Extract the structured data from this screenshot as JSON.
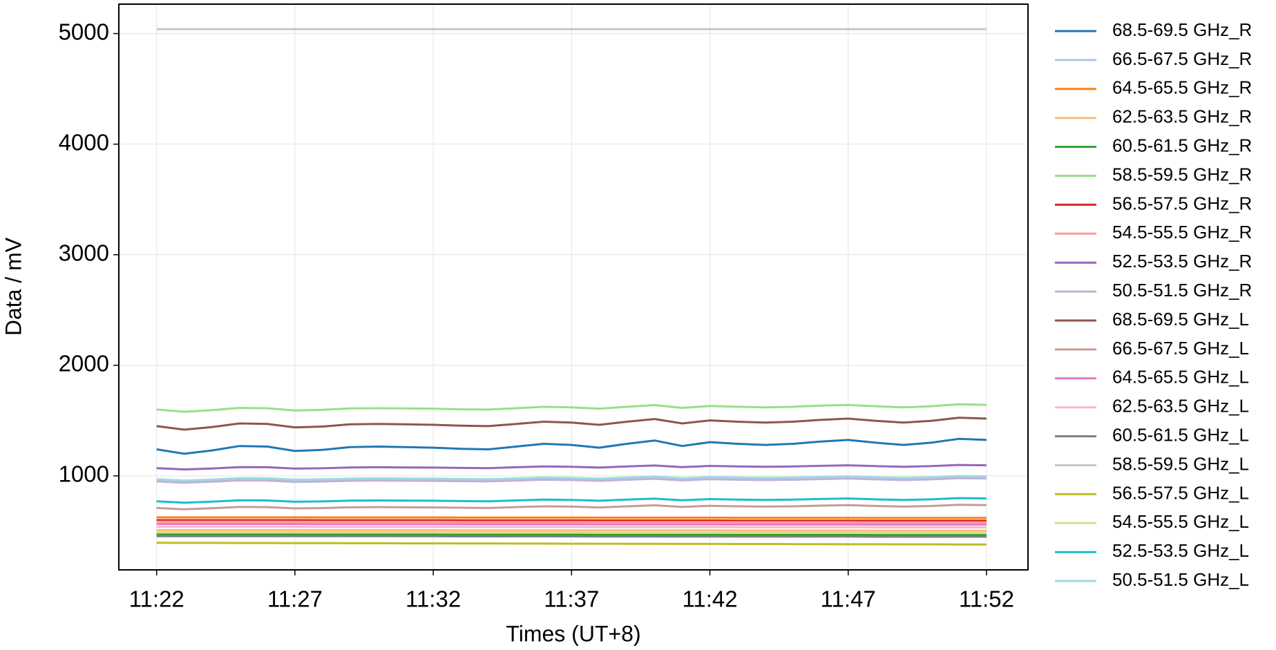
{
  "chart_data": {
    "type": "line",
    "xlabel": "Times (UT+8)",
    "ylabel": "Data / mV",
    "x": [
      "11:22",
      "11:23",
      "11:24",
      "11:25",
      "11:26",
      "11:27",
      "11:28",
      "11:29",
      "11:30",
      "11:31",
      "11:32",
      "11:33",
      "11:34",
      "11:35",
      "11:36",
      "11:37",
      "11:38",
      "11:39",
      "11:40",
      "11:41",
      "11:42",
      "11:43",
      "11:44",
      "11:45",
      "11:46",
      "11:47",
      "11:48",
      "11:49",
      "11:50",
      "11:51",
      "11:52"
    ],
    "xlim": [
      "11:20:38",
      "11:53:30"
    ],
    "xticks": [
      "11:22",
      "11:27",
      "11:32",
      "11:37",
      "11:42",
      "11:47",
      "11:52"
    ],
    "ylim": [
      150,
      5266
    ],
    "yticks": [
      1000,
      2000,
      3000,
      4000,
      5000
    ],
    "grid": true,
    "legend": "outside right",
    "series": [
      {
        "name": "68.5-69.5 GHz_R",
        "color": "#1f77b4",
        "values": [
          1240,
          1200,
          1230,
          1270,
          1265,
          1225,
          1235,
          1260,
          1265,
          1260,
          1255,
          1245,
          1240,
          1265,
          1290,
          1280,
          1255,
          1290,
          1320,
          1270,
          1305,
          1290,
          1280,
          1290,
          1310,
          1325,
          1300,
          1280,
          1300,
          1335,
          1325
        ]
      },
      {
        "name": "66.5-67.5 GHz_R",
        "color": "#aec7e8",
        "values": [
          960,
          948,
          957,
          969,
          968,
          956,
          959,
          966,
          968,
          966,
          965,
          962,
          960,
          968,
          975,
          972,
          965,
          975,
          984,
          969,
          980,
          975,
          972,
          975,
          981,
          986,
          978,
          972,
          978,
          989,
          986
        ]
      },
      {
        "name": "64.5-65.5 GHz_R",
        "color": "#ff7f0e",
        "values": [
          625,
          625,
          625,
          625,
          625,
          625,
          624,
          624,
          624,
          624,
          624,
          623,
          623,
          623,
          623,
          623,
          622,
          622,
          622,
          622,
          622,
          621,
          621,
          621,
          621,
          621,
          620,
          620,
          620,
          620,
          620
        ]
      },
      {
        "name": "62.5-63.5 GHz_R",
        "color": "#ffbb78",
        "values": [
          510,
          510,
          510,
          510,
          510,
          510,
          509,
          509,
          509,
          509,
          509,
          508,
          508,
          508,
          508,
          508,
          507,
          507,
          507,
          507,
          507,
          506,
          506,
          506,
          506,
          506,
          505,
          505,
          505,
          505,
          505
        ]
      },
      {
        "name": "60.5-61.5 GHz_R",
        "color": "#2ca02c",
        "values": [
          470,
          470,
          470,
          470,
          470,
          470,
          469,
          469,
          469,
          469,
          469,
          468,
          468,
          468,
          468,
          468,
          467,
          467,
          467,
          467,
          467,
          466,
          466,
          466,
          466,
          466,
          465,
          465,
          465,
          465,
          465
        ]
      },
      {
        "name": "58.5-59.5 GHz_R",
        "color": "#98df8a",
        "values": [
          1600,
          1580,
          1595,
          1615,
          1612,
          1592,
          1598,
          1610,
          1612,
          1610,
          1608,
          1602,
          1600,
          1612,
          1625,
          1620,
          1608,
          1625,
          1640,
          1615,
          1632,
          1625,
          1620,
          1625,
          1635,
          1642,
          1630,
          1620,
          1630,
          1648,
          1642
        ]
      },
      {
        "name": "56.5-57.5 GHz_R",
        "color": "#d62728",
        "values": [
          600,
          600,
          600,
          600,
          600,
          600,
          599,
          599,
          599,
          599,
          599,
          598,
          598,
          598,
          598,
          598,
          597,
          597,
          597,
          597,
          597,
          596,
          596,
          596,
          596,
          596,
          595,
          595,
          595,
          595,
          595
        ]
      },
      {
        "name": "54.5-55.5 GHz_R",
        "color": "#ff9896",
        "values": [
          585,
          585,
          585,
          585,
          585,
          585,
          584,
          584,
          584,
          584,
          584,
          583,
          583,
          583,
          583,
          583,
          582,
          582,
          582,
          582,
          582,
          581,
          581,
          581,
          581,
          581,
          580,
          580,
          580,
          580,
          580
        ]
      },
      {
        "name": "52.5-53.5 GHz_R",
        "color": "#9467bd",
        "values": [
          1070,
          1058,
          1067,
          1079,
          1078,
          1066,
          1069,
          1076,
          1078,
          1076,
          1075,
          1072,
          1070,
          1078,
          1085,
          1082,
          1075,
          1085,
          1094,
          1079,
          1090,
          1085,
          1082,
          1085,
          1091,
          1096,
          1088,
          1082,
          1088,
          1099,
          1096
        ]
      },
      {
        "name": "50.5-51.5 GHz_R",
        "color": "#c5b0d5",
        "values": [
          950,
          938,
          947,
          959,
          958,
          946,
          949,
          956,
          958,
          956,
          955,
          952,
          950,
          958,
          965,
          962,
          955,
          965,
          974,
          959,
          970,
          965,
          962,
          965,
          971,
          976,
          968,
          962,
          968,
          979,
          976
        ]
      },
      {
        "name": "68.5-69.5 GHz_L",
        "color": "#8c564b",
        "values": [
          1450,
          1418,
          1442,
          1474,
          1470,
          1438,
          1446,
          1466,
          1470,
          1466,
          1462,
          1454,
          1450,
          1470,
          1490,
          1482,
          1462,
          1490,
          1514,
          1474,
          1502,
          1490,
          1482,
          1490,
          1506,
          1518,
          1498,
          1482,
          1498,
          1526,
          1518
        ]
      },
      {
        "name": "66.5-67.5 GHz_L",
        "color": "#c49c94",
        "values": [
          710,
          698,
          707,
          719,
          718,
          706,
          709,
          716,
          718,
          716,
          715,
          712,
          710,
          718,
          725,
          722,
          715,
          725,
          734,
          719,
          730,
          725,
          722,
          725,
          731,
          736,
          728,
          722,
          728,
          739,
          736
        ]
      },
      {
        "name": "64.5-65.5 GHz_L",
        "color": "#e377c2",
        "values": [
          565,
          565,
          565,
          565,
          565,
          565,
          564,
          564,
          564,
          564,
          564,
          563,
          563,
          563,
          563,
          563,
          562,
          562,
          562,
          562,
          562,
          561,
          561,
          561,
          561,
          561,
          560,
          560,
          560,
          560,
          560
        ]
      },
      {
        "name": "62.5-63.5 GHz_L",
        "color": "#f7b6d2",
        "values": [
          540,
          540,
          540,
          540,
          540,
          540,
          539,
          539,
          539,
          539,
          539,
          538,
          538,
          538,
          538,
          538,
          537,
          537,
          537,
          537,
          537,
          536,
          536,
          536,
          536,
          536,
          535,
          535,
          535,
          535,
          535
        ]
      },
      {
        "name": "60.5-61.5 GHz_L",
        "color": "#7f7f7f",
        "values": [
          455,
          455,
          455,
          455,
          455,
          455,
          454,
          454,
          454,
          454,
          454,
          453,
          453,
          453,
          453,
          453,
          452,
          452,
          452,
          452,
          452,
          451,
          451,
          451,
          451,
          451,
          450,
          450,
          450,
          450,
          450
        ]
      },
      {
        "name": "58.5-59.5 GHz_L",
        "color": "#c7c7c7",
        "values": [
          5040,
          5040,
          5040,
          5040,
          5040,
          5040,
          5040,
          5040,
          5040,
          5040,
          5040,
          5040,
          5040,
          5040,
          5040,
          5040,
          5040,
          5040,
          5040,
          5040,
          5040,
          5040,
          5040,
          5040,
          5040,
          5040,
          5040,
          5040,
          5040,
          5040,
          5040
        ]
      },
      {
        "name": "56.5-57.5 GHz_L",
        "color": "#bcbd22",
        "values": [
          395,
          394,
          394,
          393,
          393,
          392,
          392,
          391,
          391,
          390,
          390,
          389,
          389,
          388,
          388,
          387,
          387,
          386,
          386,
          385,
          385,
          384,
          384,
          383,
          383,
          382,
          382,
          381,
          381,
          380,
          380
        ]
      },
      {
        "name": "54.5-55.5 GHz_L",
        "color": "#dbdb8d",
        "values": [
          490,
          490,
          490,
          490,
          490,
          490,
          489,
          489,
          489,
          489,
          489,
          488,
          488,
          488,
          488,
          488,
          487,
          487,
          487,
          487,
          487,
          486,
          486,
          486,
          486,
          486,
          485,
          485,
          485,
          485,
          485
        ]
      },
      {
        "name": "52.5-53.5 GHz_L",
        "color": "#17becf",
        "values": [
          770,
          758,
          767,
          779,
          778,
          766,
          769,
          776,
          778,
          776,
          775,
          772,
          770,
          778,
          785,
          782,
          775,
          785,
          794,
          779,
          790,
          785,
          782,
          785,
          791,
          796,
          788,
          782,
          788,
          799,
          796
        ]
      },
      {
        "name": "50.5-51.5 GHz_L",
        "color": "#9edae5",
        "values": [
          970,
          958,
          967,
          979,
          978,
          966,
          969,
          976,
          978,
          976,
          975,
          972,
          970,
          978,
          985,
          982,
          975,
          985,
          994,
          979,
          990,
          985,
          982,
          985,
          991,
          996,
          988,
          982,
          988,
          999,
          996
        ]
      }
    ]
  }
}
